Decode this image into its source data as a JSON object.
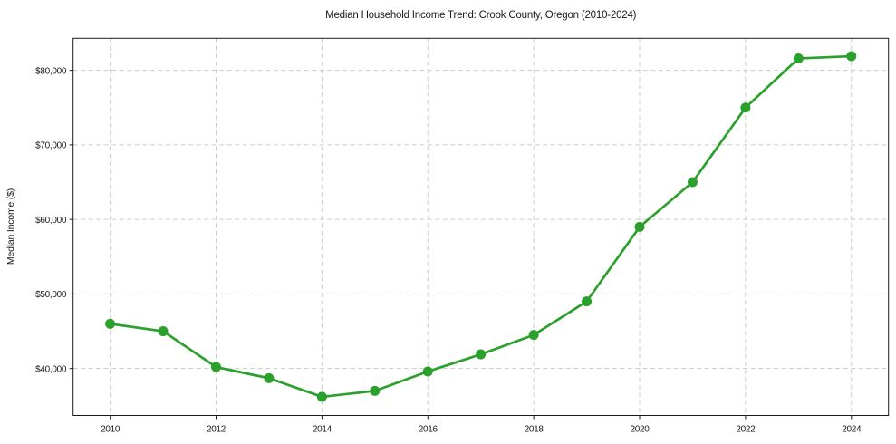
{
  "page": {
    "background_color": "#ffffff",
    "text_color": "#1a1a1a"
  },
  "chart_data": {
    "type": "line",
    "title": "Median Household Income Trend: Crook County, Oregon (2010-2024)",
    "xlabel": "",
    "ylabel": "Median Income ($)",
    "x": [
      2010,
      2011,
      2012,
      2013,
      2014,
      2015,
      2016,
      2017,
      2018,
      2019,
      2020,
      2021,
      2022,
      2023,
      2024
    ],
    "series": [
      {
        "name": "Median Household Income",
        "values": [
          46000,
          45000,
          40200,
          38700,
          36200,
          37000,
          39600,
          41900,
          44500,
          49000,
          59000,
          65000,
          75000,
          81600,
          81900
        ]
      }
    ],
    "xticks": [
      2010,
      2012,
      2014,
      2016,
      2018,
      2020,
      2022,
      2024
    ],
    "xtick_labels": [
      "2010",
      "2012",
      "2014",
      "2016",
      "2018",
      "2020",
      "2022",
      "2024"
    ],
    "yticks": [
      40000,
      50000,
      60000,
      70000,
      80000
    ],
    "ytick_labels": [
      "$40,000",
      "$50,000",
      "$60,000",
      "$70,000",
      "$80,000"
    ],
    "xlim": [
      2009.3,
      2024.7
    ],
    "ylim": [
      33700,
      84300
    ],
    "grid": true,
    "grid_style": "dashed",
    "legend_position": "none",
    "line_color": "#2ca02c",
    "marker": "circle",
    "marker_radius": 5.5,
    "line_width": 2.7,
    "grid_color": "#cccccc",
    "spine_color": "#1a1a1a",
    "tick_color": "#1a1a1a"
  }
}
